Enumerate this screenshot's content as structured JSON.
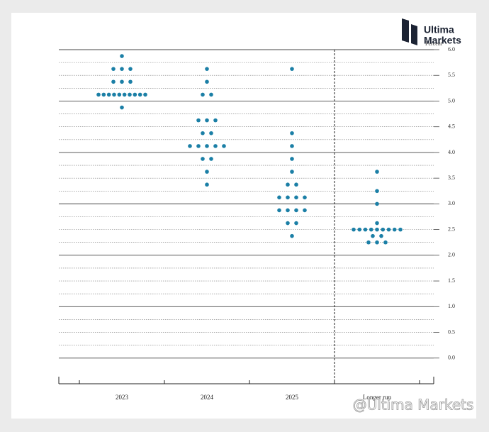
{
  "chart_data": {
    "type": "dotplot",
    "y_label": "Percent",
    "categories": [
      "2023",
      "2024",
      "2025",
      "Longer run"
    ],
    "values": [
      [
        5.875,
        5.625,
        5.625,
        5.625,
        5.375,
        5.375,
        5.375,
        5.125,
        5.125,
        5.125,
        5.125,
        5.125,
        5.125,
        5.125,
        5.125,
        5.125,
        5.125,
        4.875
      ],
      [
        5.625,
        5.375,
        5.125,
        5.125,
        4.625,
        4.625,
        4.625,
        4.375,
        4.375,
        4.125,
        4.125,
        4.125,
        4.125,
        4.125,
        3.875,
        3.875,
        3.625,
        3.375
      ],
      [
        5.625,
        4.375,
        4.125,
        3.875,
        3.625,
        3.375,
        3.375,
        3.125,
        3.125,
        3.125,
        3.125,
        2.875,
        2.875,
        2.875,
        2.875,
        2.625,
        2.625,
        2.375
      ],
      [
        3.625,
        3.25,
        3,
        2.625,
        2.5,
        2.5,
        2.5,
        2.5,
        2.5,
        2.5,
        2.5,
        2.5,
        2.5,
        2.375,
        2.375,
        2.25,
        2.25,
        2.25
      ]
    ],
    "color": "#1b7fa6",
    "ylim": [
      -0.5,
      6
    ],
    "yticks": [
      {
        "value": 0,
        "label": "0.0"
      },
      0.5,
      {
        "value": 1,
        "label": "1.0"
      },
      1.5,
      {
        "value": 2,
        "label": "2.0"
      },
      2.5,
      {
        "value": 3,
        "label": "3.0"
      },
      3.5,
      {
        "value": 4,
        "label": "4.0"
      },
      4.5,
      {
        "value": 5,
        "label": "5.0"
      },
      5.5,
      {
        "value": 6,
        "label": "6.0"
      }
    ],
    "minor_grid": [
      0.25,
      0.75,
      1.25,
      1.75,
      2.25,
      2.75,
      3.25,
      3.75,
      4.25,
      4.75,
      5.25,
      5.75
    ],
    "grid": true
  },
  "logo": [
    "Ultima",
    "Markets"
  ],
  "watermark": "@Ultima Markets"
}
